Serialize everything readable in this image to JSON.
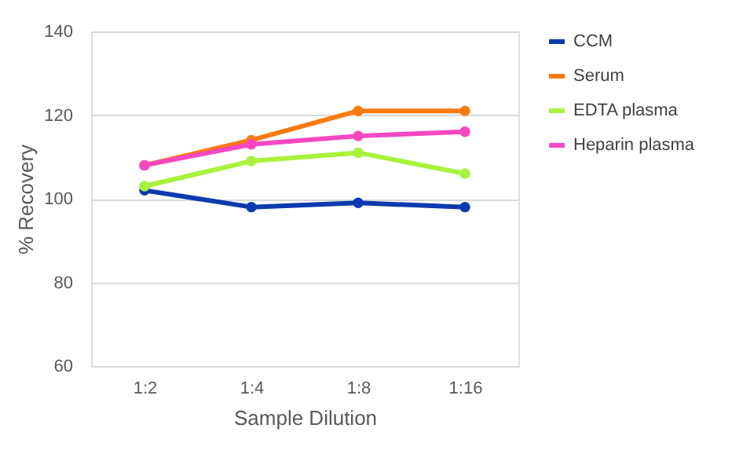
{
  "chart_data": {
    "type": "line",
    "xlabel": "Sample Dilution",
    "ylabel": "% Recovery",
    "categories": [
      "1:2",
      "1:4",
      "1:8",
      "1:16"
    ],
    "series": [
      {
        "name": "CCM",
        "color": "#0d3aae",
        "values": [
          102,
          98,
          99,
          98
        ]
      },
      {
        "name": "Serum",
        "color": "#fb7a12",
        "values": [
          108,
          114,
          121,
          121
        ]
      },
      {
        "name": "EDTA plasma",
        "color": "#a8f23c",
        "values": [
          103,
          109,
          111,
          106
        ]
      },
      {
        "name": "Heparin plasma",
        "color": "#f548c2",
        "values": [
          108,
          113,
          115,
          116
        ]
      }
    ],
    "ylim": [
      60,
      140
    ],
    "yticks": [
      60,
      80,
      100,
      120,
      140
    ],
    "grid": "y",
    "legend": "right",
    "marker": "circle",
    "line_style": "solid"
  }
}
